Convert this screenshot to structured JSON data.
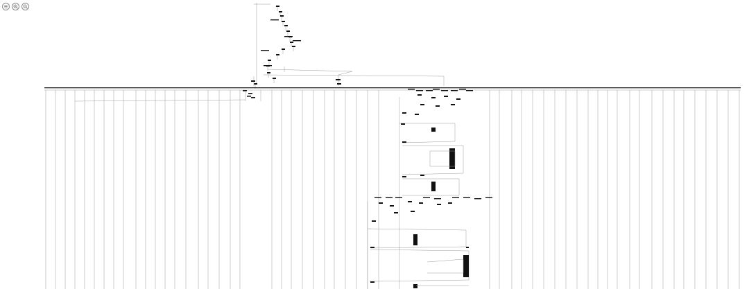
{
  "toolbar": {
    "items": [
      {
        "name": "menu-icon"
      },
      {
        "name": "zoom-in-icon"
      },
      {
        "name": "zoom-out-icon"
      }
    ]
  },
  "graph": {
    "kind": "control-flow-graph",
    "colors": {
      "edge": "#9a9a9a",
      "node": "#111111",
      "rule": "#222222"
    }
  }
}
